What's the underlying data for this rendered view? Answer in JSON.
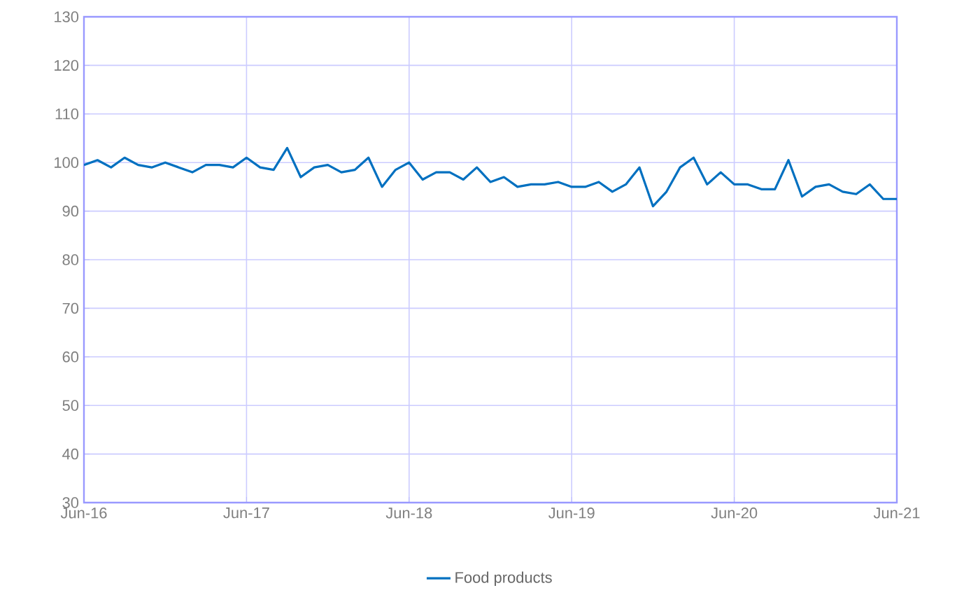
{
  "chart_data": {
    "type": "line",
    "x": [
      "2016-06",
      "2016-07",
      "2016-08",
      "2016-09",
      "2016-10",
      "2016-11",
      "2016-12",
      "2017-01",
      "2017-02",
      "2017-03",
      "2017-04",
      "2017-05",
      "2017-06",
      "2017-07",
      "2017-08",
      "2017-09",
      "2017-10",
      "2017-11",
      "2017-12",
      "2018-01",
      "2018-02",
      "2018-03",
      "2018-04",
      "2018-05",
      "2018-06",
      "2018-07",
      "2018-08",
      "2018-09",
      "2018-10",
      "2018-11",
      "2018-12",
      "2019-01",
      "2019-02",
      "2019-03",
      "2019-04",
      "2019-05",
      "2019-06",
      "2019-07",
      "2019-08",
      "2019-09",
      "2019-10",
      "2019-11",
      "2019-12",
      "2020-01",
      "2020-02",
      "2020-03",
      "2020-04",
      "2020-05",
      "2020-06",
      "2020-07",
      "2020-08",
      "2020-09",
      "2020-10",
      "2020-11",
      "2020-12",
      "2021-01",
      "2021-02",
      "2021-03",
      "2021-04",
      "2021-05",
      "2021-06"
    ],
    "series": [
      {
        "name": "Food products",
        "color": "#0070c0",
        "values": [
          99.5,
          100.5,
          99,
          101,
          99.5,
          99,
          100,
          99,
          98,
          99.5,
          99.5,
          99,
          101,
          99,
          98.5,
          103,
          97,
          99,
          99.5,
          98,
          98.5,
          101,
          95,
          98.5,
          100,
          96.5,
          98,
          98,
          96.5,
          99,
          96,
          97,
          95,
          95.5,
          95.5,
          96,
          95,
          95,
          96,
          94,
          95.5,
          99,
          91,
          94,
          99,
          101,
          95.5,
          98,
          95.5,
          95.5,
          94.5,
          94.5,
          100.5,
          93,
          95,
          95.5,
          94,
          93.5,
          95.5,
          92.5,
          92.5
        ]
      }
    ],
    "xlim": [
      "2016-06",
      "2021-06"
    ],
    "xticks": [
      {
        "value": "2016-06",
        "label": "Jun-16"
      },
      {
        "value": "2017-06",
        "label": "Jun-17"
      },
      {
        "value": "2018-06",
        "label": "Jun-18"
      },
      {
        "value": "2019-06",
        "label": "Jun-19"
      },
      {
        "value": "2020-06",
        "label": "Jun-20"
      },
      {
        "value": "2021-06",
        "label": "Jun-21"
      }
    ],
    "ylim": [
      30,
      130
    ],
    "yticks": [
      30,
      40,
      50,
      60,
      70,
      80,
      90,
      100,
      110,
      120,
      130
    ],
    "grid": true,
    "legend": "bottom",
    "marker": "none",
    "line_style": "solid"
  }
}
